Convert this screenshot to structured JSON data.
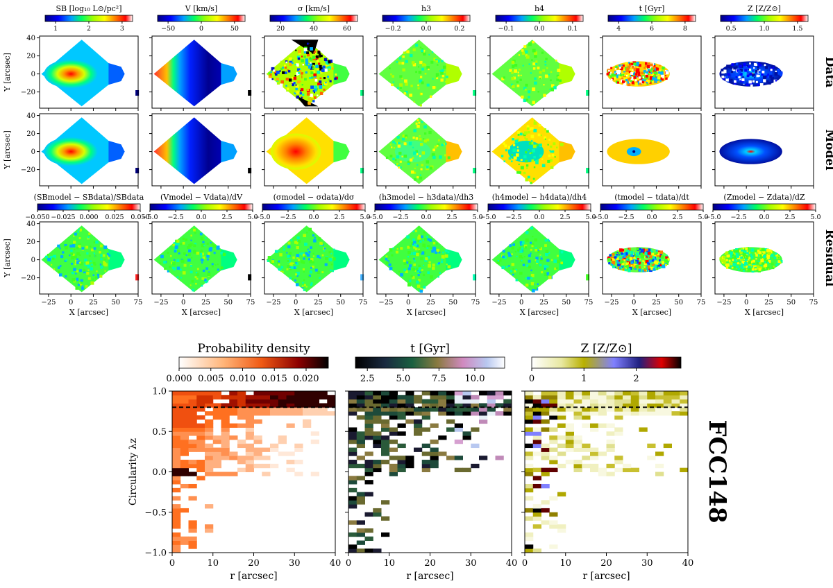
{
  "figure": {
    "galaxy_label": "FCC148",
    "row_labels": [
      "Data",
      "Model",
      "Residual"
    ],
    "y_axis_label": "Y [arcsec]",
    "x_axis_label": "X [arcsec]",
    "map_x_ticks": [
      "−25",
      "0",
      "25",
      "50",
      "75"
    ],
    "map_y_ticks": [
      "40",
      "20",
      "0",
      "−20"
    ],
    "top_colorbars": [
      {
        "label": "SB [log₁₀ L⊙/pc²]",
        "ticks": [
          "1",
          "2",
          "3"
        ],
        "cmap": "sauron"
      },
      {
        "label": "V [km/s]",
        "ticks": [
          "−50",
          "0",
          "50"
        ],
        "cmap": "sauron"
      },
      {
        "label": "σ [km/s]",
        "ticks": [
          "20",
          "40",
          "60"
        ],
        "cmap": "sauron"
      },
      {
        "label": "h3",
        "ticks": [
          "−0.2",
          "0.0",
          "0.2"
        ],
        "cmap": "sauron"
      },
      {
        "label": "h4",
        "ticks": [
          "−0.1",
          "0.0",
          "0.1"
        ],
        "cmap": "sauron"
      },
      {
        "label": "t [Gyr]",
        "ticks": [
          "4",
          "6",
          "8"
        ],
        "cmap": "sauron"
      },
      {
        "label": "Z [Z/Z⊙]",
        "ticks": [
          "0.5",
          "1.0",
          "1.5"
        ],
        "cmap": "sauron"
      }
    ],
    "residual_colorbars": [
      {
        "label": "(SBmodel − SBdata)/SBdata",
        "ticks": [
          "−0.050",
          "−0.025",
          "0.000",
          "0.025",
          "0.050"
        ]
      },
      {
        "label": "(Vmodel − Vdata)/dV",
        "ticks": [
          "−5.0",
          "−2.5",
          "0.0",
          "2.5",
          "5.0"
        ]
      },
      {
        "label": "(σmodel − σdata)/dσ",
        "ticks": [
          "−5.0",
          "−2.5",
          "0.0",
          "2.5",
          "5.0"
        ]
      },
      {
        "label": "(h3model − h3data)/dh3",
        "ticks": [
          "−5.0",
          "−2.5",
          "0.0",
          "2.5",
          "5.0"
        ]
      },
      {
        "label": "(h4model − h4data)/dh4",
        "ticks": [
          "−5.0",
          "−2.5",
          "0.0",
          "2.5",
          "5.0"
        ]
      },
      {
        "label": "(tmodel − tdata)/dt",
        "ticks": [
          "−5.0",
          "−2.5",
          "0.0",
          "2.5",
          "5.0"
        ]
      },
      {
        "label": "(Zmodel − Zdata)/dZ",
        "ticks": [
          "−5.0",
          "−2.5",
          "0.0",
          "2.5",
          "5.0"
        ]
      }
    ],
    "bottom_panels": [
      {
        "colorbar_label": "Probability density",
        "ticks": [
          "0.000",
          "0.005",
          "0.010",
          "0.015",
          "0.020"
        ],
        "cmap": "gist_heat_r"
      },
      {
        "colorbar_label": "t [Gyr]",
        "ticks": [
          "2.5",
          "5.0",
          "7.5",
          "10.0"
        ],
        "cmap": "cubehelix"
      },
      {
        "colorbar_label": "Z [Z/Z⊙]",
        "ticks": [
          "0",
          "1",
          "2"
        ],
        "cmap": "gist_stern_r"
      }
    ],
    "circularity_label": "Circularity λz",
    "r_label": "r [arcsec]",
    "r_ticks": [
      "0",
      "10",
      "20",
      "30",
      "40"
    ],
    "lambda_ticks": [
      "1.0",
      "0.5",
      "0.0",
      "−0.5",
      "−1.0"
    ],
    "dashed_line_lambda": 0.8
  },
  "chart_data": [
    {
      "type": "heatmap",
      "description_rows": "Data, Model, Residual",
      "map_types": [
        "SB",
        "V",
        "sigma",
        "h3",
        "h4",
        "t",
        "Z"
      ],
      "x_range": [
        -35,
        75
      ],
      "y_range": [
        -38,
        42
      ]
    },
    {
      "type": "heatmap",
      "title": "Probability density",
      "xlabel": "r [arcsec]",
      "ylabel": "Circularity λz",
      "xlim": [
        0,
        40
      ],
      "ylim": [
        -1.0,
        1.0
      ]
    }
  ]
}
